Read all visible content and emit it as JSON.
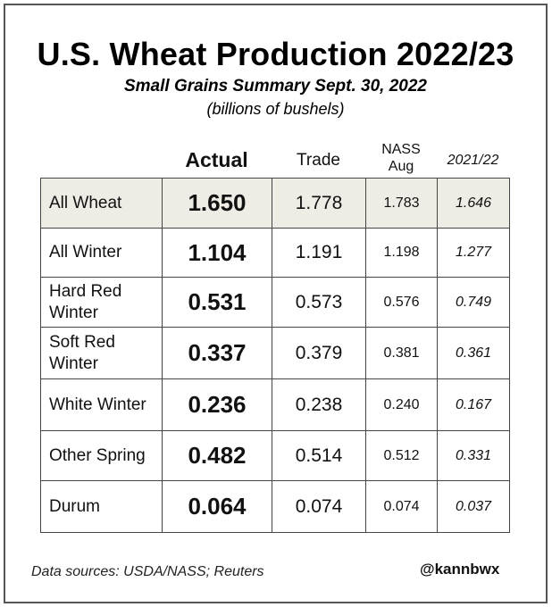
{
  "title": "U.S. Wheat Production 2022/23",
  "subtitle": "Small Grains Summary Sept. 30, 2022",
  "units": "(billions of bushels)",
  "highlight_color": "#efece5",
  "chart_data": {
    "type": "table",
    "title": "U.S. Wheat Production 2022/23",
    "subtitle": "Small Grains Summary Sept. 30, 2022",
    "units": "(billions of bushels)",
    "columns": [
      {
        "key": "actual",
        "label": "Actual"
      },
      {
        "key": "trade",
        "label": "Trade"
      },
      {
        "key": "nass_aug",
        "label_line1": "NASS",
        "label_line2": "Aug"
      },
      {
        "key": "prior",
        "label": "2021/22"
      }
    ],
    "rows": [
      {
        "label_line1": "All Wheat",
        "label_line2": "",
        "actual": "1.650",
        "trade": "1.778",
        "nass_aug": "1.783",
        "prior": "1.646",
        "highlighted": true
      },
      {
        "label_line1": "All Winter",
        "label_line2": "",
        "actual": "1.104",
        "trade": "1.191",
        "nass_aug": "1.198",
        "prior": "1.277"
      },
      {
        "label_line1": "Hard Red",
        "label_line2": "Winter",
        "actual": "0.531",
        "trade": "0.573",
        "nass_aug": "0.576",
        "prior": "0.749"
      },
      {
        "label_line1": "Soft Red",
        "label_line2": "Winter",
        "actual": "0.337",
        "trade": "0.379",
        "nass_aug": "0.381",
        "prior": "0.361"
      },
      {
        "label_line1": "White Winter",
        "label_line2": "",
        "actual": "0.236",
        "trade": "0.238",
        "nass_aug": "0.240",
        "prior": "0.167"
      },
      {
        "label_line1": "Other Spring",
        "label_line2": "",
        "actual": "0.482",
        "trade": "0.514",
        "nass_aug": "0.512",
        "prior": "0.331"
      },
      {
        "label_line1": "Durum",
        "label_line2": "",
        "actual": "0.064",
        "trade": "0.074",
        "nass_aug": "0.074",
        "prior": "0.037"
      }
    ]
  },
  "footer": {
    "sources": "Data sources: USDA/NASS; Reuters",
    "handle": "@kannbwx"
  }
}
